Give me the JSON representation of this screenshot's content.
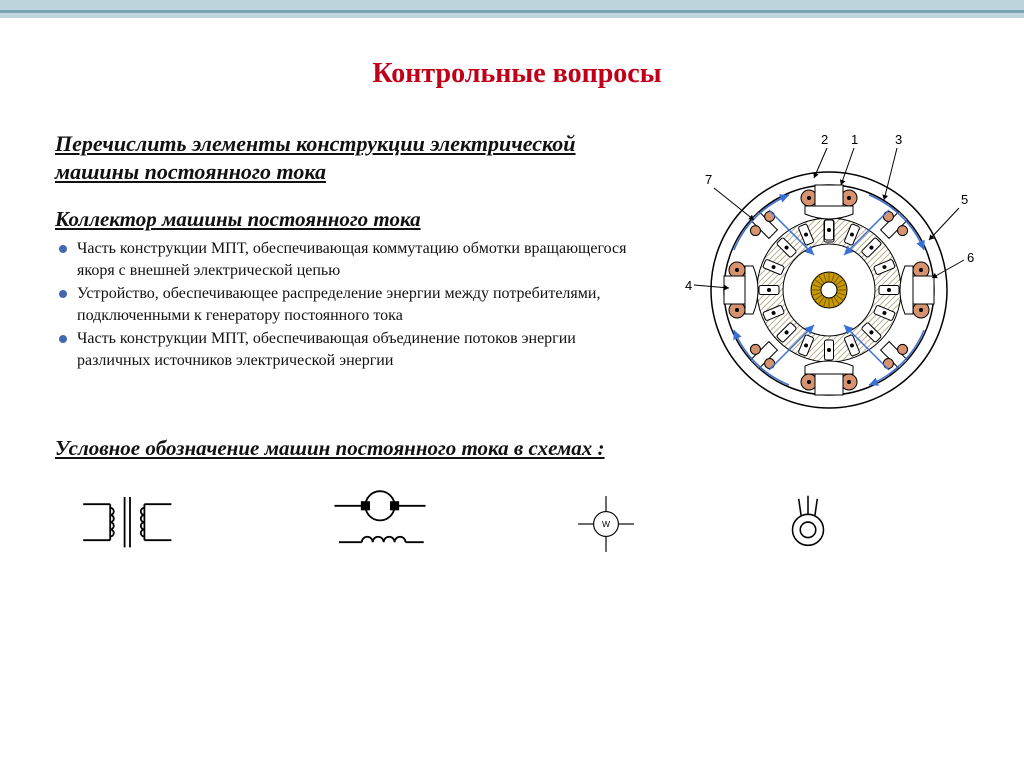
{
  "page": {
    "title": "Контрольные вопросы",
    "question1": "Перечислить  элементы конструкции электрической машины постоянного тока",
    "question2_title": "Коллектор машины постоянного тока",
    "bullets": [
      "Часть конструкции МПТ, обеспечивающая коммутацию обмотки вращающегося якоря с внешней электрической цепью",
      "Устройство, обеспечивающее распределение энергии между потребителями, подключенными к генератору постоянного тока",
      "Часть конструкции МПТ, обеспечивающая объединение потоков энергии различных источников электрической энергии"
    ],
    "symbols_heading": "Условное обозначение машин постоянного тока в схемах :"
  },
  "diagram": {
    "labels": [
      "1",
      "2",
      "3",
      "4",
      "5",
      "6",
      "7"
    ],
    "colors": {
      "outline": "#000000",
      "pole": "#d08060",
      "pole_ring": "#000000",
      "arrow": "#3a6fd8",
      "hatch": "#b8b090",
      "core": "#c89a00",
      "small_pole_fill": "#ffffff"
    }
  },
  "symbols": {
    "wattmeter_letter": "W",
    "colors": {
      "stroke": "#000000",
      "fill_solid": "#000000"
    }
  },
  "style": {
    "title_color": "#c00018",
    "bullet_color": "#4468b0",
    "topbar_light": "#bfd5de",
    "topbar_dark": "#79a2b3"
  }
}
